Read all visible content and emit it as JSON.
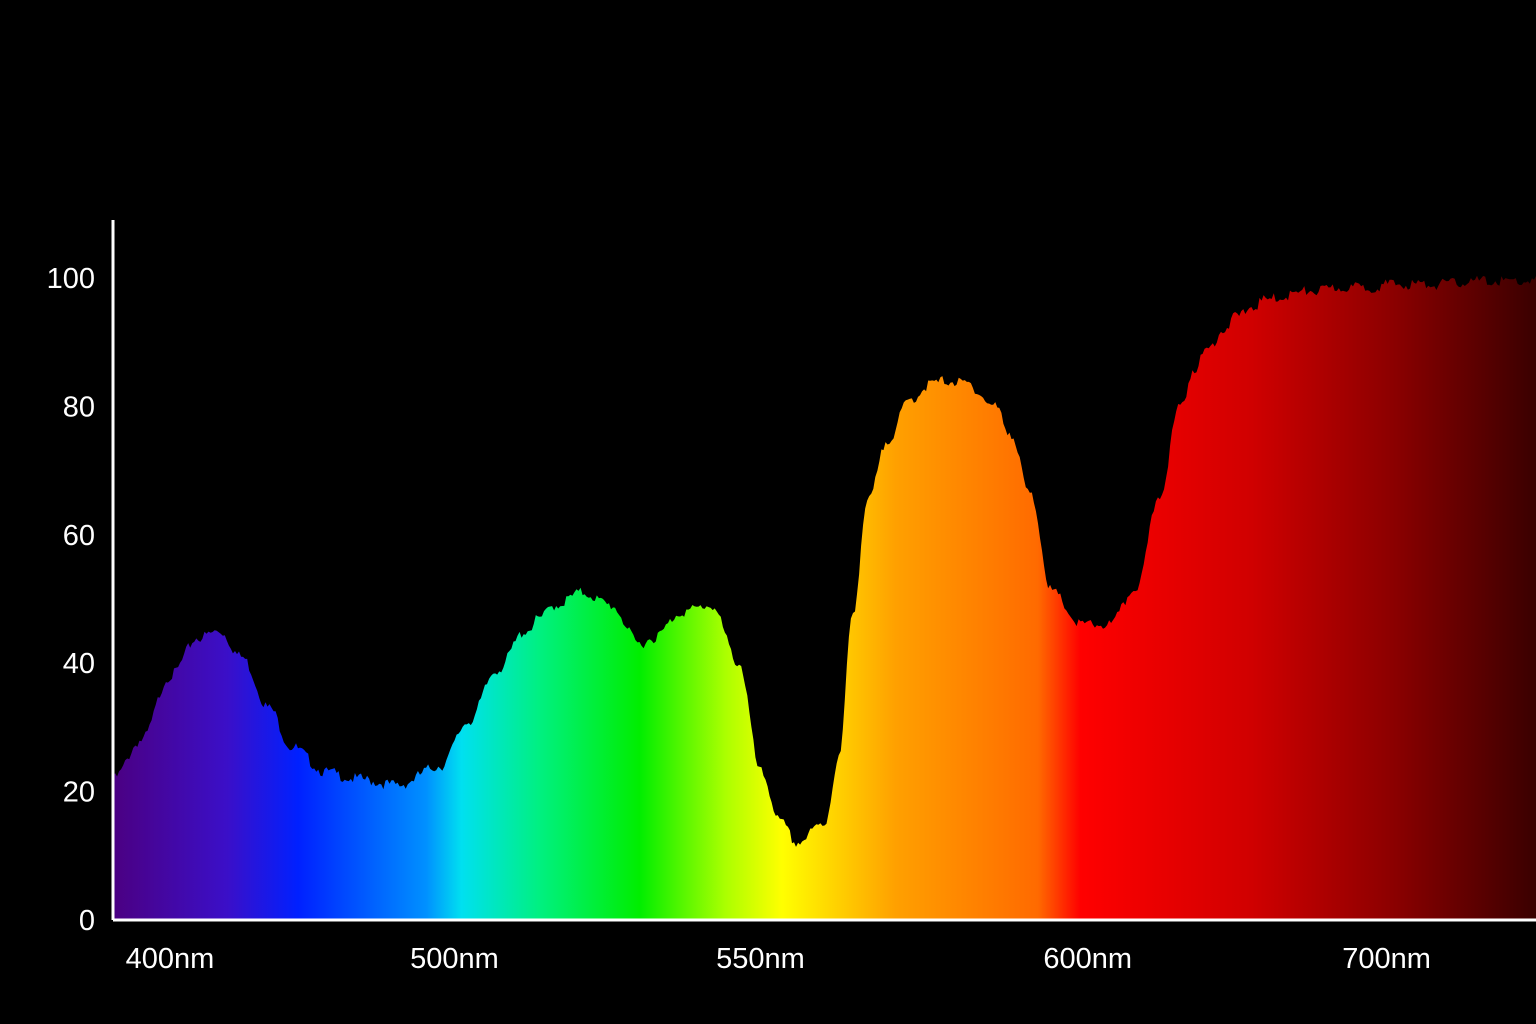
{
  "chart_data": {
    "type": "area",
    "title": "",
    "xlabel": "",
    "ylabel": "",
    "ylim": [
      0,
      110
    ],
    "grid": false,
    "legend": "none",
    "x_tick_labels": [
      "400nm",
      "500nm",
      "550nm",
      "600nm",
      "700nm"
    ],
    "y_ticks": [
      0,
      20,
      40,
      60,
      80,
      100
    ],
    "y_tick_labels": [
      "0",
      "20",
      "40",
      "60",
      "80",
      "100"
    ],
    "series": [
      {
        "x": [
          0.0,
          0.02,
          0.04,
          0.06,
          0.075,
          0.09,
          0.11,
          0.125,
          0.15,
          0.17,
          0.2,
          0.23,
          0.25,
          0.27,
          0.29,
          0.3,
          0.31,
          0.33,
          0.35,
          0.37,
          0.38,
          0.4,
          0.42,
          0.44,
          0.455,
          0.47,
          0.48,
          0.5,
          0.51,
          0.52,
          0.53,
          0.545,
          0.56,
          0.575,
          0.585,
          0.6,
          0.62,
          0.63,
          0.645,
          0.66,
          0.68,
          0.7,
          0.72,
          0.735,
          0.75,
          0.76,
          0.77,
          0.78,
          0.79,
          0.8,
          0.81,
          0.82,
          0.83,
          0.84,
          0.85,
          0.86,
          0.88,
          0.9,
          0.93,
          0.96,
          1.0
        ],
        "y": [
          22,
          28,
          38,
          44,
          45,
          41,
          33,
          27,
          23,
          22,
          21,
          24,
          31,
          39,
          45,
          47,
          49,
          51,
          49,
          43,
          44,
          48,
          49,
          40,
          23,
          15,
          12,
          15,
          25,
          48,
          65,
          75,
          81,
          83.5,
          84,
          83.5,
          80,
          76,
          66,
          51,
          46,
          46,
          52,
          66,
          80,
          86,
          89,
          92,
          94,
          95.5,
          96.5,
          97,
          97.5,
          98,
          98,
          98.5,
          98.5,
          99,
          99,
          99.5,
          99.5
        ]
      }
    ],
    "colors": {
      "background": "#000000",
      "axis": "#ffffff",
      "text": "#ffffff",
      "spectrum_stops": [
        "#4b0082",
        "#3b0fc8",
        "#0020ff",
        "#0090ff",
        "#00e0f0",
        "#00f080",
        "#00ee00",
        "#aaff00",
        "#ffff00",
        "#ffa000",
        "#ff6a00",
        "#ff0000",
        "#d00000",
        "#8b0000",
        "#3a0000"
      ]
    }
  }
}
